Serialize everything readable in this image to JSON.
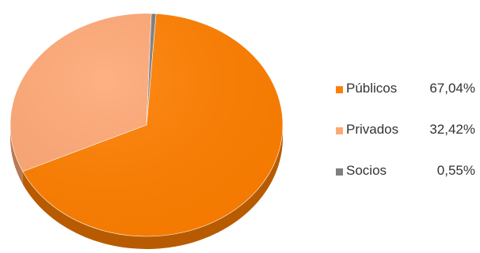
{
  "chart_data": {
    "type": "pie",
    "title": "",
    "legend_position": "right",
    "slices": [
      {
        "name": "Públicos",
        "value": 67.04,
        "label": "67,04%",
        "color": "#FF7F00"
      },
      {
        "name": "Privados",
        "value": 32.42,
        "label": "32,42%",
        "color": "#FFA875"
      },
      {
        "name": "Socios",
        "value": 0.55,
        "label": "0,55%",
        "color": "#7F7F7F"
      }
    ]
  }
}
